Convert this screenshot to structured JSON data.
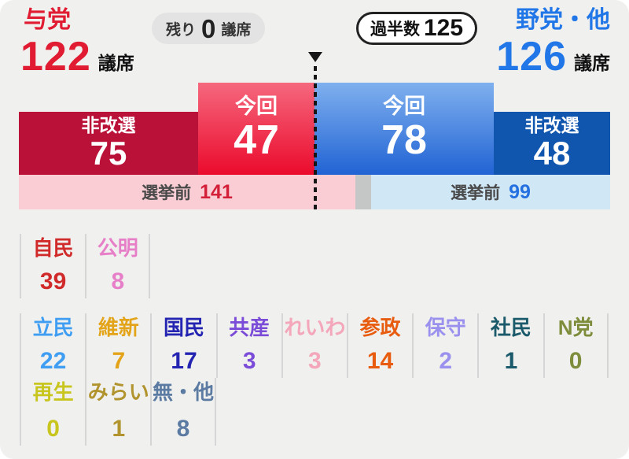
{
  "labels": {
    "seats_unit": "議席",
    "remaining_prefix": "残り",
    "majority_label": "過半数"
  },
  "colors": {
    "background": "#f0f0ee",
    "pill_bg": "#e3e3e3",
    "divider": "#d6d6d6",
    "gap_segment": "#c5c7c6",
    "pre_label_text": "#4a4a4a",
    "marker": "#161616"
  },
  "chart_data": {
    "type": "bar",
    "orientation": "horizontal-stacked",
    "majority": 125,
    "remaining_seats": 0,
    "groups": [
      {
        "name": "与党",
        "total": 122,
        "color": "#e01b32",
        "pre_election": 141,
        "segments": [
          {
            "label": "非改選",
            "value": 75,
            "bg": "#ba1138"
          },
          {
            "label": "今回",
            "value": 47,
            "bg": "linear-gradient(180deg,#f5687e,#eb0a2c)"
          }
        ]
      },
      {
        "name": "野党・他",
        "total": 126,
        "color": "#2277e8",
        "pre_election": 99,
        "segments": [
          {
            "label": "今回",
            "value": 78,
            "bg": "linear-gradient(180deg,#7fb0ee,#2163d4)"
          },
          {
            "label": "非改選",
            "value": 48,
            "bg": "#1156ae"
          }
        ]
      }
    ],
    "pre_election_bars": [
      {
        "label": "選挙前",
        "value": 141,
        "bg": "#f9cdd3",
        "value_color": "#d41f39"
      },
      {
        "label": "選挙前",
        "value": 99,
        "bg": "#d0e7f6",
        "value_color": "#2470e0"
      }
    ],
    "parties": [
      {
        "name": "自民",
        "seats": 39,
        "color": "#d02a2a"
      },
      {
        "name": "公明",
        "seats": 8,
        "color": "#e77fc8"
      },
      {
        "name": "立民",
        "seats": 22,
        "color": "#3f9ef2"
      },
      {
        "name": "維新",
        "seats": 7,
        "color": "#e3a41a"
      },
      {
        "name": "国民",
        "seats": 17,
        "color": "#2424b2"
      },
      {
        "name": "共産",
        "seats": 3,
        "color": "#7b4cd8"
      },
      {
        "name": "れいわ",
        "seats": 3,
        "color": "#f4a6ba"
      },
      {
        "name": "参政",
        "seats": 14,
        "color": "#e85c10"
      },
      {
        "name": "保守",
        "seats": 2,
        "color": "#9a90ee"
      },
      {
        "name": "社民",
        "seats": 1,
        "color": "#1b5a6a"
      },
      {
        "name": "N党",
        "seats": 0,
        "color": "#7d8d3c"
      },
      {
        "name": "再生",
        "seats": 0,
        "color": "#c8c61e"
      },
      {
        "name": "みらい",
        "seats": 1,
        "color": "#b1942e"
      },
      {
        "name": "無・他",
        "seats": 8,
        "color": "#5b7ba2"
      }
    ]
  }
}
